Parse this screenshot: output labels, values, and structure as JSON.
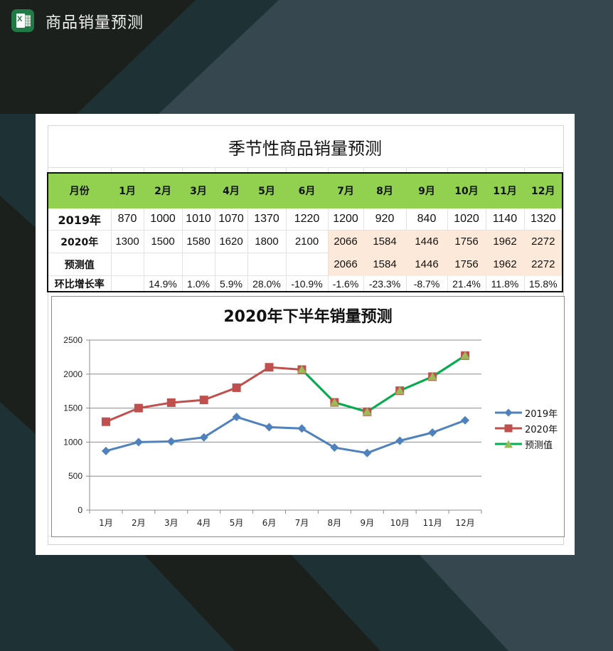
{
  "app": {
    "title": "商品销量预测",
    "icon": "excel-icon"
  },
  "sheet": {
    "title": "季节性商品销量预测",
    "header": [
      "月份",
      "1月",
      "2月",
      "3月",
      "4月",
      "5月",
      "6月",
      "7月",
      "8月",
      "9月",
      "10月",
      "11月",
      "12月"
    ],
    "rows": [
      {
        "label": "2019年",
        "cells": [
          "870",
          "1000",
          "1010",
          "1070",
          "1370",
          "1220",
          "1200",
          "920",
          "840",
          "1020",
          "1140",
          "1320"
        ]
      },
      {
        "label": "2020年",
        "cells": [
          "1300",
          "1500",
          "1580",
          "1620",
          "1800",
          "2100",
          "2066",
          "1584",
          "1446",
          "1756",
          "1962",
          "2272"
        ]
      },
      {
        "label": "预测值",
        "cells": [
          "",
          "",
          "",
          "",
          "",
          "",
          "2066",
          "1584",
          "1446",
          "1756",
          "1962",
          "2272"
        ]
      },
      {
        "label": "环比增长率",
        "cells": [
          "",
          "14.9%",
          "1.0%",
          "5.9%",
          "28.0%",
          "-10.9%",
          "-1.6%",
          "-23.3%",
          "-8.7%",
          "21.4%",
          "11.8%",
          "15.8%"
        ]
      }
    ],
    "colors": {
      "header_bg": "#92d050",
      "forecast_bg": "#fde9d9"
    }
  },
  "chart_data": {
    "type": "line",
    "title": "2020年下半年销量预测",
    "categories": [
      "1月",
      "2月",
      "3月",
      "4月",
      "5月",
      "6月",
      "7月",
      "8月",
      "9月",
      "10月",
      "11月",
      "12月"
    ],
    "series": [
      {
        "name": "2019年",
        "color": "#4f81bd",
        "marker": "diamond",
        "values": [
          870,
          1000,
          1010,
          1070,
          1370,
          1220,
          1200,
          920,
          840,
          1020,
          1140,
          1320
        ]
      },
      {
        "name": "2020年",
        "color": "#c0504d",
        "marker": "square",
        "values": [
          1300,
          1500,
          1580,
          1620,
          1800,
          2100,
          2066,
          1584,
          1446,
          1756,
          1962,
          2272
        ]
      },
      {
        "name": "预测值",
        "color": "#00b050",
        "marker": "triangle",
        "values": [
          null,
          null,
          null,
          null,
          null,
          null,
          2066,
          1584,
          1446,
          1756,
          1962,
          2272
        ]
      }
    ],
    "yticks": [
      "0",
      "500",
      "1000",
      "1500",
      "2000",
      "2500"
    ],
    "ylim": [
      0,
      2500
    ],
    "xlabel": "",
    "ylabel": "",
    "grid": true,
    "legend_position": "right"
  }
}
